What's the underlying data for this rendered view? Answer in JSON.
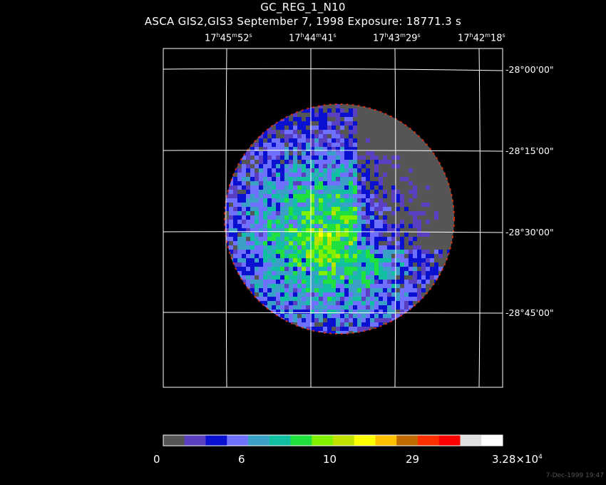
{
  "header": {
    "title": "GC_REG_1_N10",
    "subtitle": "ASCA GIS2,GIS3 September 7, 1998 Exposure: 18771.3 s"
  },
  "ra_labels": [
    {
      "h": "17",
      "m": "45",
      "s": "52"
    },
    {
      "h": "17",
      "m": "44",
      "s": "41"
    },
    {
      "h": "17",
      "m": "43",
      "s": "29"
    },
    {
      "h": "17",
      "m": "42",
      "s": "18"
    }
  ],
  "dec_labels": [
    "-28°00'00\"",
    "-28°15'00\"",
    "-28°30'00\"",
    "-28°45'00\""
  ],
  "colorbar": {
    "colors": [
      "#555555",
      "#5a3fc0",
      "#0a10d0",
      "#7070ff",
      "#3aa0c8",
      "#10c0a0",
      "#20e040",
      "#80f000",
      "#c0e000",
      "#ffff00",
      "#ffc000",
      "#c06a00",
      "#ff3000",
      "#ff0000",
      "#e0e0e0",
      "#ffffff"
    ],
    "labels": [
      "0",
      "6",
      "10",
      "29"
    ],
    "max_label": {
      "mantissa": "3.28×10",
      "exp": "4"
    }
  },
  "footer": {
    "timestamp": "7-Dec-1999 19:47"
  },
  "map": {
    "background_color": "#555555",
    "grid_color": "#ffffff"
  }
}
